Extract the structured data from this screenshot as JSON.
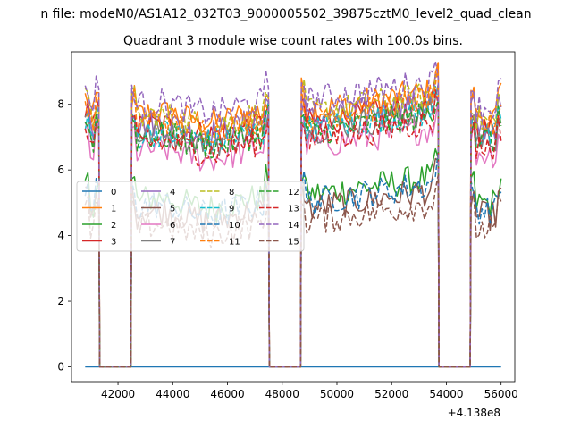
{
  "chart_data": {
    "type": "line",
    "suptitle": "n file: modeM0/AS1A12_032T03_9000005502_39875cztM0_level2_quad_clean",
    "title": "Quadrant 3 module wise count rates with 100.0s bins.",
    "xlabel": "",
    "ylabel": "",
    "x_offset_label": "+4.138e8",
    "xlim": [
      40300,
      56500
    ],
    "ylim": [
      -0.45,
      9.6
    ],
    "x_ticks": [
      42000,
      44000,
      46000,
      48000,
      50000,
      52000,
      54000,
      56000
    ],
    "x_tick_labels": [
      "42000",
      "44000",
      "46000",
      "48000",
      "50000",
      "52000",
      "54000",
      "56000"
    ],
    "y_ticks": [
      0,
      2,
      4,
      6,
      8
    ],
    "y_tick_labels": [
      "0",
      "2",
      "4",
      "6",
      "8"
    ],
    "segments": [
      [
        40800,
        41300
      ],
      [
        42500,
        47500
      ],
      [
        48700,
        53700
      ],
      [
        54900,
        56000
      ]
    ],
    "gaps": [
      [
        41300,
        42500
      ],
      [
        47500,
        48700
      ],
      [
        53700,
        54900
      ]
    ],
    "bin_seconds": 100,
    "legend_position": "center-left, 4 columns",
    "series": [
      {
        "name": "0",
        "color": "#1f77b4",
        "style": "solid",
        "level": 0.0
      },
      {
        "name": "1",
        "color": "#ff7f0e",
        "style": "solid",
        "level": 7.6
      },
      {
        "name": "2",
        "color": "#2ca02c",
        "style": "solid",
        "level": 5.0
      },
      {
        "name": "3",
        "color": "#d62728",
        "style": "solid",
        "level": 7.2
      },
      {
        "name": "4",
        "color": "#9467bd",
        "style": "solid",
        "level": 7.3
      },
      {
        "name": "5",
        "color": "#8c564b",
        "style": "solid",
        "level": 4.6
      },
      {
        "name": "6",
        "color": "#e377c2",
        "style": "solid",
        "level": 6.5
      },
      {
        "name": "7",
        "color": "#7f7f7f",
        "style": "solid",
        "level": 7.0
      },
      {
        "name": "8",
        "color": "#bcbd22",
        "style": "dashed",
        "level": 7.5
      },
      {
        "name": "9",
        "color": "#17becf",
        "style": "dashed",
        "level": 7.0
      },
      {
        "name": "10",
        "color": "#1f77b4",
        "style": "dashed",
        "level": 4.8
      },
      {
        "name": "11",
        "color": "#ff7f0e",
        "style": "dashed",
        "level": 7.4
      },
      {
        "name": "12",
        "color": "#2ca02c",
        "style": "dashed",
        "level": 6.9
      },
      {
        "name": "13",
        "color": "#d62728",
        "style": "dashed",
        "level": 6.7
      },
      {
        "name": "14",
        "color": "#9467bd",
        "style": "dashed",
        "level": 7.9
      },
      {
        "name": "15",
        "color": "#8c564b",
        "style": "dashed",
        "level": 4.2
      }
    ]
  }
}
